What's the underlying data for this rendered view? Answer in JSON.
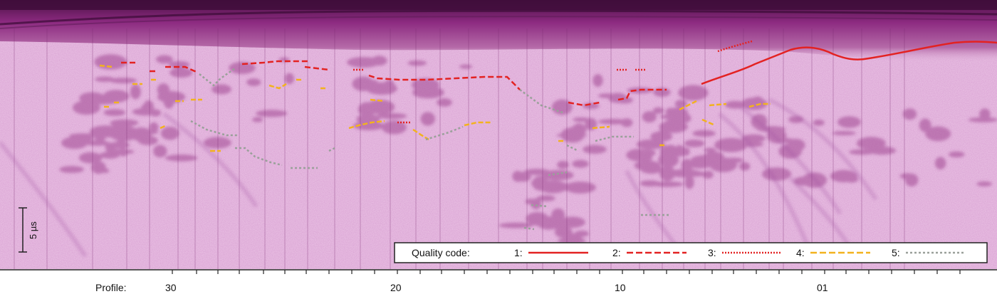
{
  "scale_bar": {
    "label": "5 µs"
  },
  "legend": {
    "title": "Quality code:",
    "entries": [
      {
        "code": "1:",
        "style": "solid",
        "color": "#e32222"
      },
      {
        "code": "2:",
        "style": "dashed",
        "color": "#e32222"
      },
      {
        "code": "3:",
        "style": "dotted",
        "color": "#e32222"
      },
      {
        "code": "4:",
        "style": "dashed",
        "color": "#f2b21e"
      },
      {
        "code": "5:",
        "style": "dotted",
        "color": "#9aa09a"
      }
    ]
  },
  "profile_axis": {
    "label": "Profile:",
    "ticks": [
      "30",
      "20",
      "10",
      "01"
    ]
  },
  "colors": {
    "background": "#ecc6e6",
    "surface_band": "#7a1f6e",
    "reflector": "#9a3a8a"
  }
}
